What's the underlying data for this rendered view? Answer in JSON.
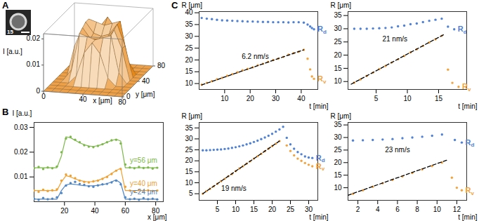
{
  "chart_data": [
    {
      "panel": "A",
      "type": "surface",
      "xlabel": "x [μm]",
      "ylabel": "y [μm]",
      "zlabel": "I [a.u.]",
      "x": [
        0,
        8,
        16,
        24,
        32,
        40,
        48,
        56,
        64,
        72,
        80
      ],
      "y": [
        0,
        8,
        16,
        24,
        32,
        40,
        48,
        56,
        64,
        72,
        80
      ],
      "z": [
        [
          0,
          0,
          0,
          0,
          0,
          0,
          0,
          0,
          0,
          0,
          0
        ],
        [
          0,
          0,
          0,
          0,
          0,
          0,
          0,
          0,
          0,
          0,
          0
        ],
        [
          0,
          0,
          0,
          0,
          0,
          0,
          0,
          0,
          0,
          0,
          0
        ],
        [
          0,
          0,
          0,
          0.003,
          0.012,
          0.016,
          0.012,
          0.003,
          0,
          0,
          0
        ],
        [
          0,
          0,
          0.004,
          0.018,
          0.017,
          0.016,
          0.017,
          0.018,
          0.004,
          0,
          0
        ],
        [
          0,
          0,
          0.012,
          0.019,
          0.015,
          0.015,
          0.015,
          0.019,
          0.012,
          0,
          0
        ],
        [
          0,
          0,
          0.012,
          0.02,
          0.016,
          0.015,
          0.016,
          0.02,
          0.012,
          0,
          0
        ],
        [
          0,
          0,
          0.005,
          0.02,
          0.019,
          0.018,
          0.019,
          0.02,
          0.005,
          0,
          0
        ],
        [
          0,
          0,
          0,
          0.006,
          0.016,
          0.02,
          0.016,
          0.006,
          0,
          0,
          0
        ],
        [
          0,
          0,
          0,
          0,
          0,
          0,
          0,
          0,
          0,
          0,
          0
        ],
        [
          0,
          0,
          0,
          0,
          0,
          0,
          0,
          0,
          0,
          0,
          0
        ]
      ],
      "xlim": [
        0,
        80
      ],
      "ylim": [
        0,
        80
      ],
      "zlim": [
        0,
        0.022
      ],
      "xticks": [
        0,
        40,
        80
      ],
      "yticks": [
        0,
        40,
        80
      ],
      "zticks": [
        0,
        0.01,
        0.02
      ],
      "color": "#eda047",
      "inset": {
        "label": "15"
      }
    },
    {
      "panel": "B",
      "type": "scatter",
      "xlabel": "x [μm]",
      "ylabel": "I [a.u.]",
      "x": [
        0,
        3,
        6,
        9,
        12,
        15,
        18,
        21,
        24,
        27,
        30,
        33,
        36,
        39,
        42,
        45,
        48,
        51,
        54,
        57,
        60,
        63,
        66,
        69,
        72,
        75,
        78,
        81
      ],
      "xlim": [
        0,
        85
      ],
      "ylim": [
        0,
        0.032
      ],
      "xticks": [
        20,
        40,
        60,
        80
      ],
      "yticks": [
        0.01,
        0.02,
        0.03
      ],
      "series": [
        {
          "name": "y=56 μm",
          "color": "#7cb84a",
          "values": [
            0.0135,
            0.014,
            0.0132,
            0.0138,
            0.0135,
            0.0142,
            0.02,
            0.0255,
            0.0262,
            0.025,
            0.024,
            0.0228,
            0.0222,
            0.022,
            0.0225,
            0.0232,
            0.024,
            0.0248,
            0.025,
            0.0235,
            0.015,
            0.0138,
            0.0135,
            0.014,
            0.0136,
            0.0138,
            0.0134,
            0.0137
          ],
          "fit": [
            0.0137,
            0.0137,
            0.0137,
            0.0137,
            0.0137,
            0.0137,
            0.0185,
            0.0262,
            0.0258,
            0.0248,
            0.0238,
            0.023,
            0.0225,
            0.0223,
            0.0226,
            0.0232,
            0.024,
            0.0247,
            0.0252,
            0.0245,
            0.0137,
            0.0137,
            0.0137,
            0.0137,
            0.0137,
            0.0137,
            0.0137,
            0.0137
          ]
        },
        {
          "name": "y=40 μm",
          "color": "#f0a030",
          "values": [
            0.0045,
            0.004,
            0.0048,
            0.0043,
            0.0046,
            0.005,
            0.0085,
            0.011,
            0.0105,
            0.0095,
            0.0085,
            0.008,
            0.0078,
            0.0082,
            0.0085,
            0.0092,
            0.01,
            0.0112,
            0.0125,
            0.0132,
            0.006,
            0.0045,
            0.0042,
            0.0047,
            0.0044,
            0.0046,
            0.0043,
            0.0045
          ],
          "fit": [
            0.0045,
            0.0045,
            0.0045,
            0.0045,
            0.0045,
            0.0045,
            0.008,
            0.0105,
            0.01,
            0.0092,
            0.0086,
            0.0082,
            0.008,
            0.0082,
            0.0086,
            0.0093,
            0.0102,
            0.0114,
            0.0126,
            0.0135,
            0.0045,
            0.0045,
            0.0045,
            0.0045,
            0.0045,
            0.0045,
            0.0045,
            0.0045
          ]
        },
        {
          "name": "y=24 μm",
          "color": "#4f86c6",
          "values": [
            0.0012,
            0.0008,
            0.0015,
            0.001,
            0.0012,
            0.0018,
            0.0035,
            0.0065,
            0.0075,
            0.008,
            0.0072,
            0.0068,
            0.0062,
            0.006,
            0.0066,
            0.007,
            0.0072,
            0.0078,
            0.0085,
            0.007,
            0.0018,
            0.001,
            0.0012,
            0.0008,
            0.0014,
            0.001,
            0.0012,
            0.0009
          ],
          "fit": [
            0.001,
            0.001,
            0.001,
            0.001,
            0.001,
            0.001,
            0.0045,
            0.0068,
            0.0072,
            0.007,
            0.0067,
            0.0065,
            0.0064,
            0.0064,
            0.0066,
            0.0069,
            0.0073,
            0.008,
            0.0088,
            0.0075,
            0.001,
            0.001,
            0.001,
            0.001,
            0.001,
            0.001,
            0.001,
            0.001
          ]
        }
      ]
    },
    {
      "panel": "C",
      "type": "scatter",
      "xlabel": "t [min]",
      "ylabel": "R [μm]",
      "xlim": [
        0,
        46.5
      ],
      "ylim": [
        7.5,
        40.5
      ],
      "xticks": [
        10,
        20,
        30,
        40
      ],
      "yticks": [
        10,
        15,
        20,
        25,
        30,
        35,
        40
      ],
      "series": [
        {
          "name": "Rd",
          "color": "#4f81d6",
          "x": [
            1,
            3,
            5,
            7,
            9,
            11,
            13,
            15,
            17,
            19,
            21,
            23,
            25,
            27,
            29,
            31,
            33,
            35,
            37,
            39,
            41,
            42.5,
            43.5,
            44.2,
            45
          ],
          "values": [
            37.8,
            37.5,
            37.3,
            37.0,
            36.8,
            36.7,
            36.6,
            36.5,
            36.4,
            36.3,
            36.3,
            36.2,
            36.1,
            36.1,
            36.0,
            36.0,
            36.0,
            35.9,
            36.0,
            36.0,
            35.8,
            35.0,
            34.2,
            33.5,
            33.0
          ]
        },
        {
          "name": "Rv",
          "color": "#f4a23c",
          "x": [
            1,
            3,
            5,
            7,
            9,
            11,
            13,
            15,
            17,
            19,
            21,
            23,
            25,
            27,
            29,
            31,
            33,
            35,
            37,
            39,
            41,
            42.5,
            43.5,
            44.2,
            45
          ],
          "values": [
            9.5,
            10.3,
            11.0,
            11.8,
            12.4,
            13.3,
            14.0,
            14.8,
            15.6,
            16.2,
            16.9,
            17.8,
            18.4,
            19.2,
            20.0,
            20.6,
            21.3,
            22.2,
            22.9,
            23.5,
            24.3,
            20.5,
            16,
            13,
            12
          ]
        }
      ],
      "fit": {
        "x": [
          1,
          41
        ],
        "values": [
          9.4,
          24.3
        ],
        "color": "#000000",
        "line_style": "dashed"
      },
      "annotations": [
        {
          "text": "6.2 nm/s",
          "x": 22,
          "y": 21.5
        }
      ]
    },
    {
      "type": "scatter",
      "xlabel": "t [min]",
      "ylabel": "R [μm]",
      "xlim": [
        0.5,
        19.5
      ],
      "ylim": [
        7,
        36.5
      ],
      "xticks": [
        5,
        10,
        15
      ],
      "yticks": [
        10,
        15,
        20,
        25,
        30,
        35
      ],
      "series": [
        {
          "name": "Rd",
          "color": "#4f81d6",
          "x": [
            1.5,
            2.5,
            3.5,
            4.5,
            5.5,
            6.5,
            7.5,
            8.5,
            9.5,
            10.5,
            11.5,
            12.5,
            13.5,
            14.5,
            15.5,
            16.5,
            17.5
          ],
          "values": [
            30,
            30,
            30,
            30.1,
            30.2,
            30.3,
            30.5,
            30.9,
            31.2,
            31.7,
            32.0,
            32.5,
            33.0,
            33.4,
            33.8,
            30.8,
            29.8
          ]
        },
        {
          "name": "Rv",
          "color": "#f4a23c",
          "x": [
            1.5,
            2.5,
            3.5,
            4.5,
            5.5,
            6.5,
            7.5,
            8.5,
            9.5,
            10.5,
            11.5,
            12.5,
            13.5,
            14.5,
            15.5,
            16.5,
            17.2,
            18.2
          ],
          "values": [
            9.6,
            10.8,
            12.1,
            13.4,
            14.7,
            15.9,
            17.2,
            18.4,
            19.7,
            21.0,
            22.2,
            23.5,
            24.8,
            26.0,
            27.3,
            14.5,
            9.5,
            8.0
          ]
        }
      ],
      "fit": {
        "x": [
          1,
          16
        ],
        "values": [
          9,
          28
        ],
        "color": "#000000",
        "line_style": "dashed"
      },
      "annotations": [
        {
          "text": "21 nm/s",
          "x": 8,
          "y": 26
        }
      ]
    },
    {
      "type": "scatter",
      "xlabel": "t [min]",
      "ylabel": "R [μm]",
      "xlim": [
        0,
        32.5
      ],
      "ylim": [
        2,
        37.5
      ],
      "xticks": [
        5,
        10,
        15,
        20,
        25,
        30
      ],
      "yticks": [
        5,
        10,
        15,
        20,
        25,
        30,
        35
      ],
      "series": [
        {
          "name": "Rd",
          "color": "#4f81d6",
          "x": [
            1,
            2,
            3,
            4,
            5,
            6,
            7,
            8,
            9,
            10,
            11,
            12,
            13,
            14,
            15,
            16,
            17,
            18,
            19,
            20,
            21,
            22,
            23,
            24,
            25,
            26,
            27,
            28,
            29,
            30,
            31
          ],
          "values": [
            24.8,
            24.8,
            24.9,
            25.0,
            25.1,
            25.2,
            25.4,
            25.6,
            25.9,
            26.2,
            26.6,
            27.0,
            27.5,
            28.0,
            28.6,
            29.2,
            29.9,
            30.6,
            31.4,
            32.3,
            33.3,
            34.3,
            35.5,
            30.5,
            27.5,
            25.5,
            24.0,
            23.0,
            22.0,
            21.5,
            21.3
          ]
        },
        {
          "name": "Rv",
          "color": "#f4a23c",
          "x": [
            1,
            2,
            3,
            4,
            5,
            6,
            7,
            8,
            9,
            10,
            11,
            12,
            13,
            14,
            15,
            16,
            17,
            18,
            19,
            20,
            21,
            22,
            24,
            25,
            26,
            27,
            28,
            29,
            30,
            31
          ],
          "values": [
            5,
            6.2,
            7.3,
            8.4,
            9.5,
            10.7,
            11.8,
            13.0,
            14.0,
            15.3,
            16.5,
            17.5,
            18.7,
            19.8,
            21.0,
            22.1,
            23.2,
            24.4,
            25.5,
            26.7,
            27.8,
            29.0,
            27,
            24.5,
            22.5,
            21,
            20,
            19,
            18.2,
            17.5
          ]
        }
      ],
      "fit": {
        "x": [
          1,
          22
        ],
        "values": [
          5,
          29
        ],
        "color": "#000000",
        "line_style": "dashed"
      },
      "annotations": [
        {
          "text": "19 nm/s",
          "x": 9.5,
          "y": 7.5
        }
      ]
    },
    {
      "type": "scatter",
      "xlabel": "t [min]",
      "ylabel": "R [μm]",
      "xlim": [
        1,
        13
      ],
      "ylim": [
        5,
        36
      ],
      "xticks": [
        2,
        4,
        6,
        8,
        10,
        12
      ],
      "yticks": [
        10,
        15,
        20,
        25,
        30,
        35
      ],
      "series": [
        {
          "name": "Rd",
          "color": "#4f81d6",
          "x": [
            1.5,
            2.5,
            3.5,
            4.5,
            5.5,
            6.5,
            7.5,
            8.5,
            9.5,
            10.5,
            11.8,
            12.5
          ],
          "values": [
            28.8,
            28.9,
            29.0,
            29.2,
            29.4,
            29.7,
            30.0,
            30.3,
            30.7,
            31.2,
            29.0,
            28.0
          ]
        },
        {
          "name": "Rv",
          "color": "#f4a23c",
          "x": [
            1.5,
            2.5,
            3.5,
            4.5,
            5.5,
            6.5,
            7.5,
            8.5,
            9.5,
            10.5,
            11.5,
            12,
            12.5
          ],
          "values": [
            7.6,
            9.0,
            10.4,
            11.8,
            13.1,
            14.5,
            15.9,
            17.3,
            18.6,
            20.0,
            14,
            10,
            9
          ]
        }
      ],
      "fit": {
        "x": [
          1,
          11
        ],
        "values": [
          7,
          21
        ],
        "color": "#000000",
        "line_style": "dashed"
      },
      "annotations": [
        {
          "text": "23 nm/s",
          "x": 6,
          "y": 25
        }
      ]
    }
  ]
}
